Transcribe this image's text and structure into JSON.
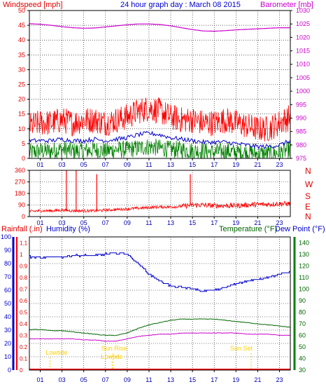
{
  "colors": {
    "grid": "#000000",
    "wind": "#ff0000",
    "gust_avg": "#0000cc",
    "wind_low": "#008000",
    "baro": "#cc00cc",
    "humid": "#0000cc",
    "temp": "#006600",
    "rain": "#ff0000",
    "tide": "#ffd000"
  },
  "chart_data": [
    {
      "type": "line",
      "title": "24 hour graph day : March 08 2015",
      "left_label": "Windspeed [mph]",
      "right_label": "Barometer [mb]",
      "x_ticks": [
        "01",
        "03",
        "05",
        "07",
        "09",
        "11",
        "13",
        "15",
        "17",
        "19",
        "21",
        "23"
      ],
      "ylim_left": [
        0,
        50
      ],
      "left_ticks": [
        "0",
        "5",
        "10",
        "15",
        "20",
        "25",
        "30",
        "35",
        "40",
        "45",
        "50"
      ],
      "ylim_right": [
        975,
        1030
      ],
      "right_ticks": [
        "975",
        "980",
        "985",
        "990",
        "995",
        "1000",
        "1005",
        "1010",
        "1015",
        "1020",
        "1025",
        "1030"
      ],
      "series": [
        {
          "name": "Barometer",
          "x": [
            0,
            1,
            2,
            3,
            4,
            5,
            6,
            7,
            8,
            9,
            10,
            11,
            12,
            13,
            14,
            15,
            16,
            17,
            18,
            19,
            20,
            21,
            22,
            23,
            24
          ],
          "values": [
            1025.1,
            1024.9,
            1024.5,
            1024.0,
            1023.6,
            1023.4,
            1023.5,
            1023.9,
            1024.3,
            1024.7,
            1025.0,
            1025.0,
            1024.8,
            1024.3,
            1023.6,
            1022.9,
            1022.4,
            1022.3,
            1022.5,
            1022.8,
            1023.0,
            1023.2,
            1023.4,
            1023.6,
            1023.6
          ]
        },
        {
          "name": "Wind",
          "x": [
            0,
            1,
            2,
            3,
            4,
            5,
            6,
            7,
            8,
            9,
            10,
            11,
            12,
            13,
            14,
            15,
            16,
            17,
            18,
            19,
            20,
            21,
            22,
            23,
            24
          ],
          "values": [
            11,
            12,
            12,
            13,
            12,
            13,
            13,
            12,
            13,
            14,
            16,
            17,
            16,
            14,
            13,
            13,
            12,
            12,
            13,
            12,
            11,
            10,
            10,
            12,
            14
          ]
        },
        {
          "name": "Average",
          "x": [
            0,
            1,
            2,
            3,
            4,
            5,
            6,
            7,
            8,
            9,
            10,
            11,
            12,
            13,
            14,
            15,
            16,
            17,
            18,
            19,
            20,
            21,
            22,
            23,
            24
          ],
          "values": [
            6,
            6,
            6,
            6.5,
            6,
            6,
            6.5,
            6,
            6.5,
            7,
            8,
            8.5,
            8,
            7,
            6.5,
            6,
            5.5,
            5.5,
            5.5,
            5,
            4.5,
            4,
            4,
            4.5,
            6
          ]
        },
        {
          "name": "Low",
          "x": [
            0,
            1,
            2,
            3,
            4,
            5,
            6,
            7,
            8,
            9,
            10,
            11,
            12,
            13,
            14,
            15,
            16,
            17,
            18,
            19,
            20,
            21,
            22,
            23,
            24
          ],
          "values": [
            2,
            2.5,
            2.5,
            3,
            2.5,
            2.5,
            3,
            2.5,
            3,
            3,
            3.5,
            4,
            3.5,
            3,
            3,
            2.5,
            2.5,
            2,
            2.5,
            2,
            2,
            1.5,
            1.5,
            2,
            3
          ]
        }
      ]
    },
    {
      "type": "line",
      "title": "",
      "x_ticks": [
        "01",
        "03",
        "05",
        "07",
        "09",
        "11",
        "13",
        "15",
        "17",
        "19",
        "21",
        "23"
      ],
      "ylim_left": [
        0,
        360
      ],
      "left_ticks": [
        "0",
        "90",
        "180",
        "270",
        "360"
      ],
      "right_ticks": [
        "N",
        "W",
        "S",
        "E",
        "N"
      ],
      "series": [
        {
          "name": "Wind direction",
          "x": [
            0,
            1,
            2,
            3,
            4,
            5,
            6,
            7,
            8,
            9,
            10,
            11,
            12,
            13,
            14,
            15,
            16,
            17,
            18,
            19,
            20,
            21,
            22,
            23,
            24
          ],
          "values": [
            40,
            45,
            45,
            50,
            45,
            45,
            45,
            50,
            55,
            60,
            65,
            70,
            75,
            75,
            80,
            90,
            90,
            85,
            85,
            85,
            90,
            95,
            95,
            100,
            100
          ]
        },
        {
          "name": "Direction spikes",
          "x": [
            3.4,
            4.3,
            6.2,
            14.8
          ],
          "values": [
            360,
            360,
            330,
            330
          ]
        }
      ]
    },
    {
      "type": "line",
      "title": "",
      "left_label_rain": "Rainfall (.in)",
      "left_label_humid": "Humidity (%)",
      "right_label_temp": "Temperature (°F)",
      "right_label_dew": "Dew Point (°F)",
      "x_ticks": [
        "01",
        "03",
        "05",
        "07",
        "09",
        "11",
        "13",
        "15",
        "17",
        "19",
        "21",
        "23"
      ],
      "humid_ticks": [
        "0",
        "10",
        "20",
        "30",
        "40",
        "50",
        "60",
        "70",
        "80",
        "90",
        "100"
      ],
      "rain_ticks": [
        "0",
        "0.1",
        "0.2",
        "0.3",
        "0.4",
        "0.5",
        "0.6",
        "0.7",
        "0.8",
        "0.9",
        "1",
        "1.1"
      ],
      "temp_ticks": [
        "30",
        "40",
        "50",
        "60",
        "70",
        "80",
        "90",
        "100",
        "110",
        "120",
        "130",
        "140"
      ],
      "ylim_humid": [
        0,
        100
      ],
      "ylim_temp": [
        30,
        145
      ],
      "annotations": [
        "Lowtide",
        "Sun Rise",
        "Lowtide",
        "Sun Set"
      ],
      "series": [
        {
          "name": "Humidity",
          "x": [
            0,
            1,
            2,
            3,
            4,
            5,
            6,
            7,
            8,
            9,
            10,
            11,
            12,
            13,
            14,
            15,
            16,
            17,
            18,
            19,
            20,
            21,
            22,
            23,
            24
          ],
          "values": [
            85,
            84,
            85,
            85,
            86,
            86,
            86,
            87,
            88,
            87,
            80,
            72,
            67,
            63,
            62,
            61,
            59,
            60,
            62,
            65,
            67,
            68,
            70,
            72,
            74
          ]
        },
        {
          "name": "Temperature",
          "x": [
            0,
            1,
            2,
            3,
            4,
            5,
            6,
            7,
            8,
            9,
            10,
            11,
            12,
            13,
            14,
            15,
            16,
            17,
            18,
            19,
            20,
            21,
            22,
            23,
            24
          ],
          "values": [
            65,
            65,
            64,
            64,
            63,
            62,
            61,
            60,
            60,
            62,
            66,
            69,
            71,
            73,
            74,
            74,
            74,
            74,
            73,
            72,
            71,
            70,
            69,
            68,
            67
          ]
        },
        {
          "name": "Dew Point",
          "x": [
            0,
            1,
            2,
            3,
            4,
            5,
            6,
            7,
            8,
            9,
            10,
            11,
            12,
            13,
            14,
            15,
            16,
            17,
            18,
            19,
            20,
            21,
            22,
            23,
            24
          ],
          "values": [
            57,
            57,
            57,
            57,
            57,
            56,
            56,
            55,
            55,
            57,
            59,
            60,
            61,
            61,
            62,
            62,
            62,
            62,
            62,
            62,
            61,
            61,
            61,
            60,
            60
          ]
        },
        {
          "name": "Rain",
          "x": [
            0,
            24
          ],
          "values": [
            0,
            0
          ]
        }
      ]
    }
  ]
}
